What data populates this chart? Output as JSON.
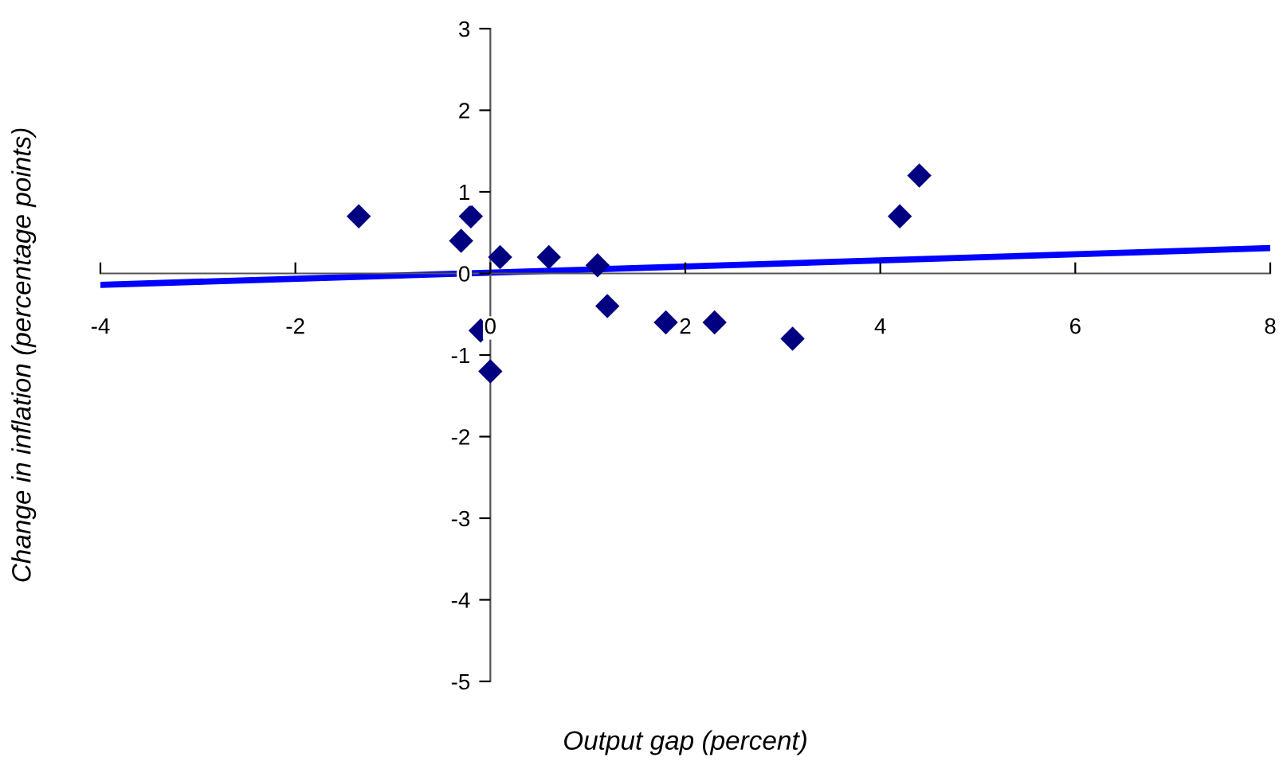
{
  "chart_data": {
    "type": "scatter",
    "xlabel": "Output gap (percent)",
    "ylabel": "Change in inflation (percentage points)",
    "xlim": [
      -4,
      8
    ],
    "ylim": [
      -5,
      3
    ],
    "xticks": [
      -4,
      -2,
      0,
      2,
      4,
      6,
      8
    ],
    "yticks": [
      -5,
      -4,
      -3,
      -2,
      -1,
      0,
      1,
      2,
      3
    ],
    "grid": false,
    "legend": false,
    "marker": "diamond",
    "series": [
      {
        "color": "#000080",
        "x": [
          -1.35,
          -0.3,
          -0.2,
          -0.1,
          0.0,
          0.1,
          0.6,
          1.1,
          1.2,
          1.8,
          2.3,
          3.1,
          4.2,
          4.4
        ],
        "values": [
          0.7,
          0.4,
          0.7,
          -0.7,
          -1.2,
          0.2,
          0.2,
          0.1,
          -0.4,
          -0.6,
          -0.6,
          -0.8,
          0.7,
          1.2
        ]
      },
      {
        "type": "line",
        "color": "#0000ff",
        "x": [
          -4,
          8
        ],
        "values": [
          -0.14,
          0.31
        ],
        "marker": "none",
        "line_style": "solid"
      }
    ]
  }
}
